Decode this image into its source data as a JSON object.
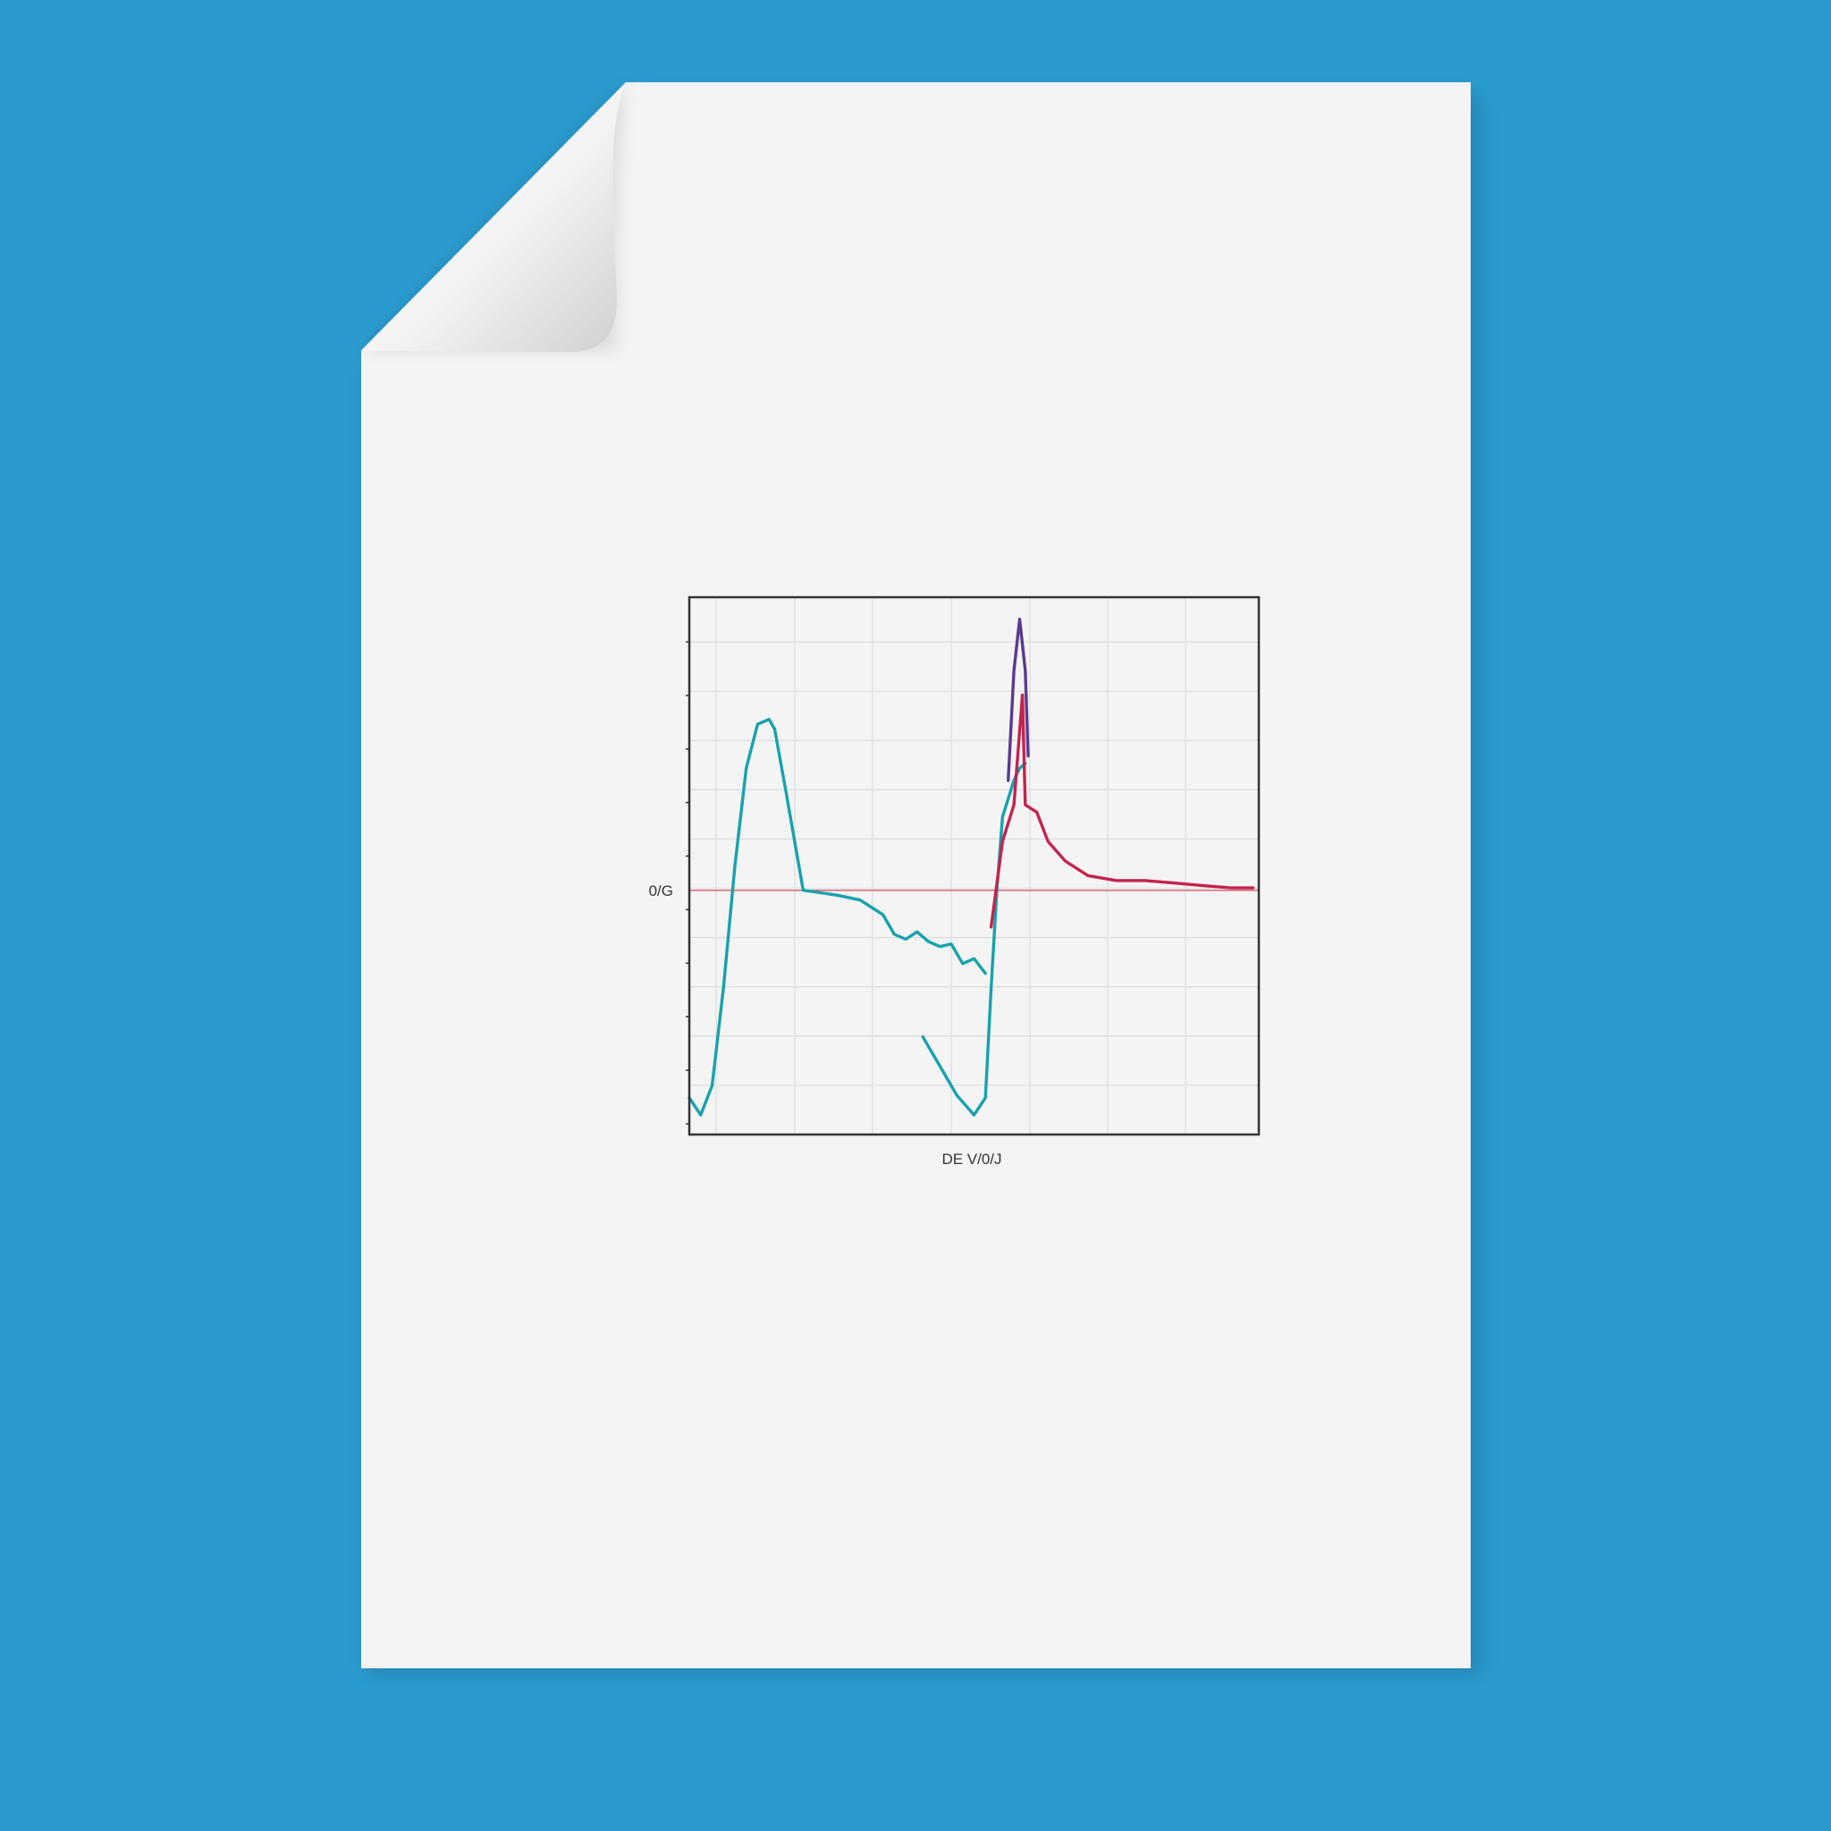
{
  "colors": {
    "background": "#2b9bce",
    "paper": "#f4f4f4",
    "series_teal": "#17a2ad",
    "series_crimson": "#c4234e",
    "series_purple": "#5b3a8e",
    "baseline": "#d9707f",
    "grid": "#dedede",
    "frame": "#333333"
  },
  "chart_data": {
    "type": "line",
    "title": "",
    "xlabel": "",
    "ylabel": "",
    "xlim": [
      0,
      100
    ],
    "ylim": [
      -100,
      120
    ],
    "grid": true,
    "legend": "none",
    "tick_labels": {
      "y_zero": "0/G",
      "x_center": "DE V/0/J"
    },
    "baseline": {
      "y": 0
    },
    "series": [
      {
        "color": "#17a2ad",
        "points": [
          [
            0,
            -85
          ],
          [
            2,
            -92
          ],
          [
            4,
            -80
          ],
          [
            6,
            -40
          ],
          [
            8,
            10
          ],
          [
            10,
            50
          ],
          [
            12,
            68
          ],
          [
            14,
            70
          ],
          [
            15,
            66
          ],
          [
            17,
            40
          ],
          [
            20,
            0
          ],
          [
            23,
            -1
          ],
          [
            26,
            -2
          ],
          [
            30,
            -4
          ],
          [
            34,
            -10
          ],
          [
            36,
            -18
          ],
          [
            38,
            -20
          ],
          [
            40,
            -17
          ],
          [
            42,
            -21
          ],
          [
            44,
            -23
          ],
          [
            46,
            -22
          ],
          [
            48,
            -30
          ],
          [
            50,
            -28
          ],
          [
            52,
            -34
          ]
        ]
      },
      {
        "color": "#17a2ad",
        "points": [
          [
            41,
            -60
          ],
          [
            44,
            -72
          ],
          [
            47,
            -84
          ],
          [
            50,
            -92
          ],
          [
            52,
            -85
          ],
          [
            53,
            -40
          ],
          [
            54,
            0
          ],
          [
            55,
            30
          ],
          [
            57,
            45
          ],
          [
            58,
            50
          ],
          [
            59,
            52
          ]
        ]
      },
      {
        "color": "#5b3a8e",
        "points": [
          [
            56,
            45
          ],
          [
            57,
            90
          ],
          [
            58,
            111
          ],
          [
            59,
            90
          ],
          [
            59.5,
            55
          ]
        ]
      },
      {
        "color": "#c4234e",
        "points": [
          [
            53,
            -15
          ],
          [
            55,
            20
          ],
          [
            57,
            35
          ],
          [
            58.5,
            80
          ],
          [
            59,
            35
          ],
          [
            61,
            32
          ],
          [
            63,
            20
          ],
          [
            66,
            12
          ],
          [
            70,
            6
          ],
          [
            75,
            4
          ],
          [
            80,
            4
          ],
          [
            85,
            3
          ],
          [
            90,
            2
          ],
          [
            95,
            1
          ],
          [
            99,
            1
          ]
        ]
      }
    ]
  }
}
